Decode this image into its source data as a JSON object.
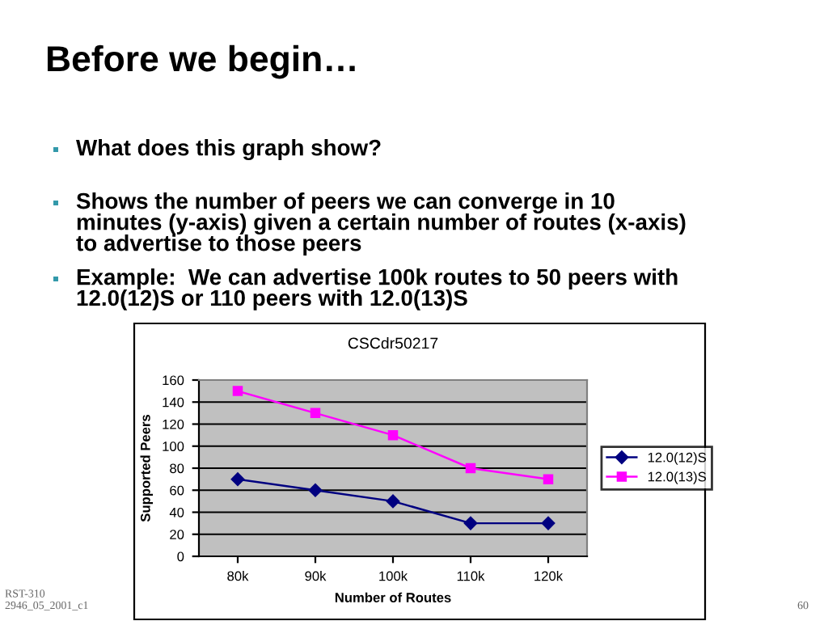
{
  "chart_data": {
    "type": "line",
    "title": "CSCdr50217",
    "xlabel": "Number of Routes",
    "ylabel": "Supported Peers",
    "categories": [
      "80k",
      "90k",
      "100k",
      "110k",
      "120k"
    ],
    "series": [
      {
        "name": "12.0(12)S",
        "color": "#000080",
        "marker": "diamond",
        "values": [
          70,
          60,
          50,
          30,
          30
        ]
      },
      {
        "name": "12.0(13)S",
        "color": "#ff00ff",
        "marker": "square",
        "values": [
          150,
          130,
          110,
          80,
          70
        ]
      }
    ],
    "ylim": [
      0,
      160
    ],
    "yticks": [
      0,
      20,
      40,
      60,
      80,
      100,
      120,
      140,
      160
    ],
    "grid": "y",
    "legend": "right",
    "line_style": "solid",
    "annotations": [
      "Before we begin…",
      "What does this graph show?",
      "Shows the number of peers we can converge in 10\nminutes (y-axis) given a certain number of routes (x-axis)\nto advertise to those peers",
      "Example:  We can advertise 100k routes to 50 peers with\n12.0(12)S or 110 peers with 12.0(13)S",
      "RST-310\n2946_05_2001_c1",
      "60"
    ]
  }
}
